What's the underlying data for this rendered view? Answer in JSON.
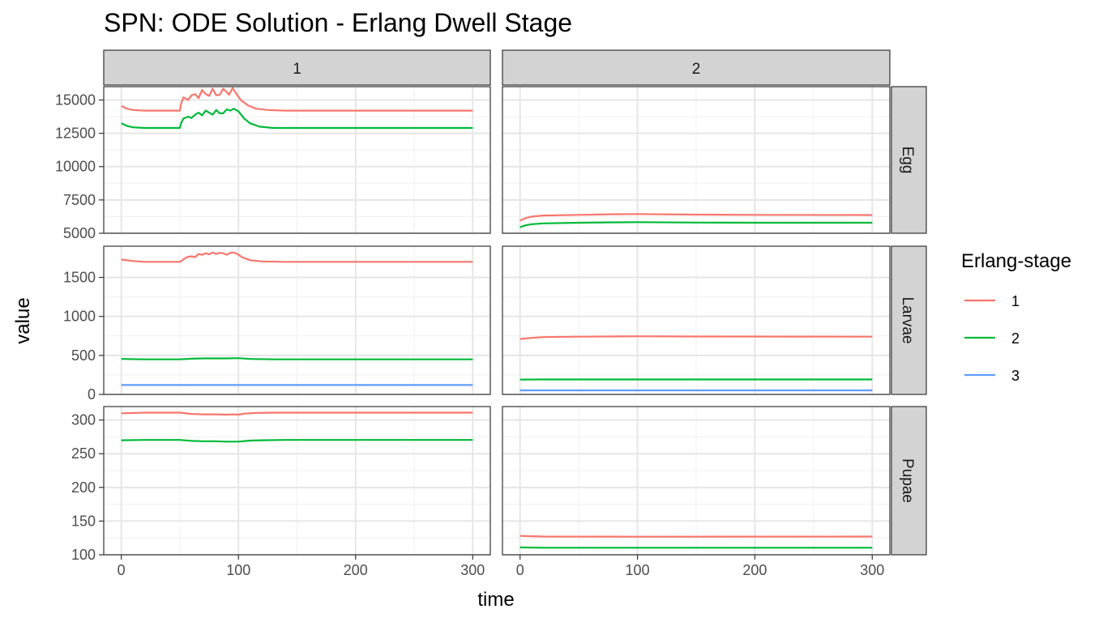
{
  "chart_data": {
    "type": "line",
    "title": "SPN: ODE Solution - Erlang Dwell Stage",
    "xlabel": "time",
    "ylabel": "value",
    "xlim": [
      0,
      300
    ],
    "x_ticks": [
      0,
      100,
      200,
      300
    ],
    "grid": true,
    "column_facets": [
      "1",
      "2"
    ],
    "row_facets": [
      "Egg",
      "Larvae",
      "Pupae"
    ],
    "legend": {
      "title": "Erlang-stage",
      "placement": "right",
      "entries": [
        {
          "label": "1",
          "color": "#F8766D"
        },
        {
          "label": "2",
          "color": "#00BA38"
        },
        {
          "label": "3",
          "color": "#619CFF"
        }
      ]
    },
    "panels": [
      {
        "row": "Egg",
        "ylim": [
          5000,
          16000
        ],
        "y_ticks": [
          5000,
          7500,
          10000,
          12500,
          15000
        ],
        "y_tick_labels": [
          "5000",
          "7500",
          "10000",
          "12500",
          "15000"
        ],
        "columns": [
          {
            "column": "1",
            "series": [
              {
                "stage": "1",
                "points": [
                  [
                    0,
                    14550
                  ],
                  [
                    5,
                    14350
                  ],
                  [
                    10,
                    14250
                  ],
                  [
                    20,
                    14200
                  ],
                  [
                    50,
                    14200
                  ],
                  [
                    51,
                    14700
                  ],
                  [
                    53,
                    15200
                  ],
                  [
                    57,
                    15000
                  ],
                  [
                    60,
                    15350
                  ],
                  [
                    63,
                    15450
                  ],
                  [
                    66,
                    15150
                  ],
                  [
                    69,
                    15750
                  ],
                  [
                    72,
                    15450
                  ],
                  [
                    75,
                    15300
                  ],
                  [
                    78,
                    15850
                  ],
                  [
                    81,
                    15350
                  ],
                  [
                    84,
                    15400
                  ],
                  [
                    87,
                    15850
                  ],
                  [
                    90,
                    15600
                  ],
                  [
                    92,
                    15400
                  ],
                  [
                    95,
                    15900
                  ],
                  [
                    98,
                    15500
                  ],
                  [
                    102,
                    15000
                  ],
                  [
                    108,
                    14600
                  ],
                  [
                    115,
                    14350
                  ],
                  [
                    125,
                    14250
                  ],
                  [
                    140,
                    14200
                  ],
                  [
                    300,
                    14200
                  ]
                ]
              },
              {
                "stage": "2",
                "points": [
                  [
                    0,
                    13250
                  ],
                  [
                    5,
                    13050
                  ],
                  [
                    10,
                    12950
                  ],
                  [
                    20,
                    12900
                  ],
                  [
                    50,
                    12900
                  ],
                  [
                    51,
                    13250
                  ],
                  [
                    53,
                    13600
                  ],
                  [
                    57,
                    13750
                  ],
                  [
                    60,
                    13650
                  ],
                  [
                    63,
                    13900
                  ],
                  [
                    66,
                    14050
                  ],
                  [
                    69,
                    13850
                  ],
                  [
                    72,
                    14200
                  ],
                  [
                    75,
                    14050
                  ],
                  [
                    78,
                    13900
                  ],
                  [
                    81,
                    14250
                  ],
                  [
                    84,
                    14000
                  ],
                  [
                    87,
                    14000
                  ],
                  [
                    90,
                    14300
                  ],
                  [
                    93,
                    14200
                  ],
                  [
                    96,
                    14350
                  ],
                  [
                    100,
                    14150
                  ],
                  [
                    105,
                    13600
                  ],
                  [
                    110,
                    13250
                  ],
                  [
                    118,
                    13000
                  ],
                  [
                    130,
                    12900
                  ],
                  [
                    300,
                    12900
                  ]
                ]
              }
            ]
          },
          {
            "column": "2",
            "series": [
              {
                "stage": "1",
                "points": [
                  [
                    0,
                    5950
                  ],
                  [
                    5,
                    6150
                  ],
                  [
                    10,
                    6250
                  ],
                  [
                    20,
                    6330
                  ],
                  [
                    50,
                    6380
                  ],
                  [
                    80,
                    6430
                  ],
                  [
                    100,
                    6440
                  ],
                  [
                    150,
                    6400
                  ],
                  [
                    200,
                    6380
                  ],
                  [
                    300,
                    6370
                  ]
                ]
              },
              {
                "stage": "2",
                "points": [
                  [
                    0,
                    5450
                  ],
                  [
                    5,
                    5600
                  ],
                  [
                    10,
                    5680
                  ],
                  [
                    20,
                    5740
                  ],
                  [
                    50,
                    5790
                  ],
                  [
                    80,
                    5820
                  ],
                  [
                    100,
                    5830
                  ],
                  [
                    150,
                    5800
                  ],
                  [
                    200,
                    5790
                  ],
                  [
                    300,
                    5790
                  ]
                ]
              }
            ]
          }
        ]
      },
      {
        "row": "Larvae",
        "ylim": [
          0,
          1900
        ],
        "y_ticks": [
          0,
          500,
          1000,
          1500
        ],
        "y_tick_labels": [
          "0",
          "500",
          "1000",
          "1500"
        ],
        "columns": [
          {
            "column": "1",
            "series": [
              {
                "stage": "1",
                "points": [
                  [
                    0,
                    1730
                  ],
                  [
                    10,
                    1710
                  ],
                  [
                    20,
                    1700
                  ],
                  [
                    50,
                    1700
                  ],
                  [
                    53,
                    1730
                  ],
                  [
                    56,
                    1760
                  ],
                  [
                    60,
                    1770
                  ],
                  [
                    63,
                    1760
                  ],
                  [
                    66,
                    1800
                  ],
                  [
                    69,
                    1790
                  ],
                  [
                    72,
                    1810
                  ],
                  [
                    75,
                    1795
                  ],
                  [
                    78,
                    1820
                  ],
                  [
                    81,
                    1800
                  ],
                  [
                    84,
                    1815
                  ],
                  [
                    87,
                    1810
                  ],
                  [
                    90,
                    1790
                  ],
                  [
                    93,
                    1815
                  ],
                  [
                    96,
                    1820
                  ],
                  [
                    99,
                    1800
                  ],
                  [
                    103,
                    1760
                  ],
                  [
                    110,
                    1720
                  ],
                  [
                    120,
                    1705
                  ],
                  [
                    140,
                    1700
                  ],
                  [
                    300,
                    1700
                  ]
                ]
              },
              {
                "stage": "2",
                "points": [
                  [
                    0,
                    455
                  ],
                  [
                    20,
                    450
                  ],
                  [
                    50,
                    450
                  ],
                  [
                    60,
                    458
                  ],
                  [
                    70,
                    462
                  ],
                  [
                    80,
                    462
                  ],
                  [
                    90,
                    462
                  ],
                  [
                    100,
                    465
                  ],
                  [
                    110,
                    455
                  ],
                  [
                    130,
                    450
                  ],
                  [
                    300,
                    450
                  ]
                ]
              },
              {
                "stage": "3",
                "points": [
                  [
                    0,
                    120
                  ],
                  [
                    300,
                    120
                  ]
                ]
              }
            ]
          },
          {
            "column": "2",
            "series": [
              {
                "stage": "1",
                "points": [
                  [
                    0,
                    710
                  ],
                  [
                    10,
                    725
                  ],
                  [
                    20,
                    735
                  ],
                  [
                    50,
                    740
                  ],
                  [
                    100,
                    745
                  ],
                  [
                    150,
                    742
                  ],
                  [
                    300,
                    740
                  ]
                ]
              },
              {
                "stage": "2",
                "points": [
                  [
                    0,
                    190
                  ],
                  [
                    20,
                    192
                  ],
                  [
                    300,
                    192
                  ]
                ]
              },
              {
                "stage": "3",
                "points": [
                  [
                    0,
                    52
                  ],
                  [
                    300,
                    52
                  ]
                ]
              }
            ]
          }
        ]
      },
      {
        "row": "Pupae",
        "ylim": [
          100,
          320
        ],
        "y_ticks": [
          100,
          150,
          200,
          250,
          300
        ],
        "y_tick_labels": [
          "100",
          "150",
          "200",
          "250",
          "300"
        ],
        "columns": [
          {
            "column": "1",
            "series": [
              {
                "stage": "1",
                "points": [
                  [
                    0,
                    310
                  ],
                  [
                    20,
                    311
                  ],
                  [
                    50,
                    311
                  ],
                  [
                    60,
                    309
                  ],
                  [
                    70,
                    308.5
                  ],
                  [
                    80,
                    308.5
                  ],
                  [
                    90,
                    308
                  ],
                  [
                    95,
                    308.5
                  ],
                  [
                    100,
                    308
                  ],
                  [
                    105,
                    309.5
                  ],
                  [
                    115,
                    310.5
                  ],
                  [
                    130,
                    311
                  ],
                  [
                    300,
                    311
                  ]
                ]
              },
              {
                "stage": "2",
                "points": [
                  [
                    0,
                    270
                  ],
                  [
                    20,
                    270.5
                  ],
                  [
                    50,
                    270.5
                  ],
                  [
                    60,
                    269
                  ],
                  [
                    70,
                    268.5
                  ],
                  [
                    80,
                    268.5
                  ],
                  [
                    90,
                    268
                  ],
                  [
                    100,
                    268
                  ],
                  [
                    110,
                    269.5
                  ],
                  [
                    120,
                    270
                  ],
                  [
                    140,
                    270.5
                  ],
                  [
                    300,
                    270.5
                  ]
                ]
              }
            ]
          },
          {
            "column": "2",
            "series": [
              {
                "stage": "1",
                "points": [
                  [
                    0,
                    128
                  ],
                  [
                    10,
                    127.5
                  ],
                  [
                    20,
                    127
                  ],
                  [
                    100,
                    126.8
                  ],
                  [
                    300,
                    127
                  ]
                ]
              },
              {
                "stage": "2",
                "points": [
                  [
                    0,
                    111
                  ],
                  [
                    20,
                    110.5
                  ],
                  [
                    300,
                    110.5
                  ]
                ]
              }
            ]
          }
        ]
      }
    ]
  }
}
